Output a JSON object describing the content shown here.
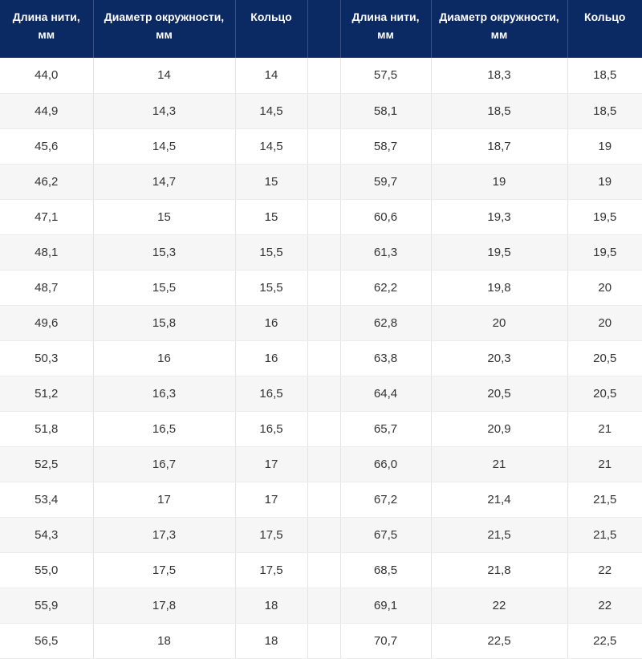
{
  "table": {
    "headers": [
      "Длина нити, мм",
      "Диаметр окружности, мм",
      "Кольцо",
      "",
      "Длина нити, мм",
      "Диаметр окружности, мм",
      "Кольцо"
    ],
    "rows": [
      [
        "44,0",
        "14",
        "14",
        "",
        "57,5",
        "18,3",
        "18,5"
      ],
      [
        "44,9",
        "14,3",
        "14,5",
        "",
        "58,1",
        "18,5",
        "18,5"
      ],
      [
        "45,6",
        "14,5",
        "14,5",
        "",
        "58,7",
        "18,7",
        "19"
      ],
      [
        "46,2",
        "14,7",
        "15",
        "",
        "59,7",
        "19",
        "19"
      ],
      [
        "47,1",
        "15",
        "15",
        "",
        "60,6",
        "19,3",
        "19,5"
      ],
      [
        "48,1",
        "15,3",
        "15,5",
        "",
        "61,3",
        "19,5",
        "19,5"
      ],
      [
        "48,7",
        "15,5",
        "15,5",
        "",
        "62,2",
        "19,8",
        "20"
      ],
      [
        "49,6",
        "15,8",
        "16",
        "",
        "62,8",
        "20",
        "20"
      ],
      [
        "50,3",
        "16",
        "16",
        "",
        "63,8",
        "20,3",
        "20,5"
      ],
      [
        "51,2",
        "16,3",
        "16,5",
        "",
        "64,4",
        "20,5",
        "20,5"
      ],
      [
        "51,8",
        "16,5",
        "16,5",
        "",
        "65,7",
        "20,9",
        "21"
      ],
      [
        "52,5",
        "16,7",
        "17",
        "",
        "66,0",
        "21",
        "21"
      ],
      [
        "53,4",
        "17",
        "17",
        "",
        "67,2",
        "21,4",
        "21,5"
      ],
      [
        "54,3",
        "17,3",
        "17,5",
        "",
        "67,5",
        "21,5",
        "21,5"
      ],
      [
        "55,0",
        "17,5",
        "17,5",
        "",
        "68,5",
        "21,8",
        "22"
      ],
      [
        "55,9",
        "17,8",
        "18",
        "",
        "69,1",
        "22",
        "22"
      ],
      [
        "56,5",
        "18",
        "18",
        "",
        "70,7",
        "22,5",
        "22,5"
      ]
    ]
  },
  "colors": {
    "header_background": "#0b2a63",
    "header_text": "#ffffff",
    "zebra_row": "#f6f6f6",
    "cell_text": "#333333"
  }
}
